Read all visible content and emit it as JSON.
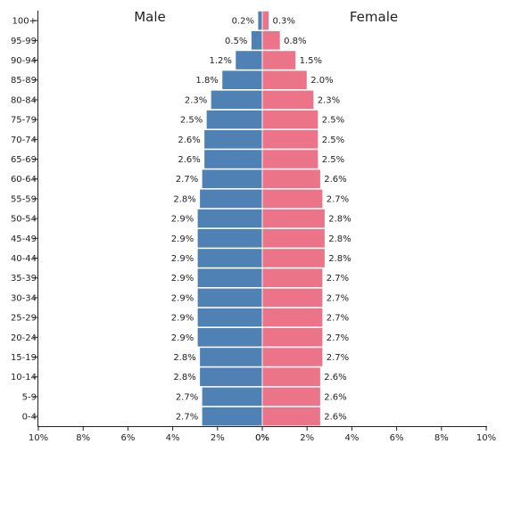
{
  "chart_data": {
    "type": "bar",
    "orientation": "horizontal",
    "layout": "population-pyramid",
    "left_label": "Male",
    "right_label": "Female",
    "categories": [
      "100+",
      "95-99",
      "90-94",
      "85-89",
      "80-84",
      "75-79",
      "70-74",
      "65-69",
      "60-64",
      "55-59",
      "50-54",
      "45-49",
      "40-44",
      "35-39",
      "30-34",
      "25-29",
      "20-24",
      "15-19",
      "10-14",
      "5-9",
      "0-4"
    ],
    "series": [
      {
        "name": "Male",
        "color": "#4f81b4",
        "values": [
          0.2,
          0.5,
          1.2,
          1.8,
          2.3,
          2.5,
          2.6,
          2.6,
          2.7,
          2.8,
          2.9,
          2.9,
          2.9,
          2.9,
          2.9,
          2.9,
          2.9,
          2.8,
          2.8,
          2.7,
          2.7
        ],
        "value_labels": [
          "0.2%",
          "0.5%",
          "1.2%",
          "1.8%",
          "2.3%",
          "2.5%",
          "2.6%",
          "2.6%",
          "2.7%",
          "2.8%",
          "2.9%",
          "2.9%",
          "2.9%",
          "2.9%",
          "2.9%",
          "2.9%",
          "2.9%",
          "2.8%",
          "2.8%",
          "2.7%",
          "2.7%"
        ]
      },
      {
        "name": "Female",
        "color": "#ec7489",
        "values": [
          0.3,
          0.8,
          1.5,
          2.0,
          2.3,
          2.5,
          2.5,
          2.5,
          2.6,
          2.7,
          2.8,
          2.8,
          2.8,
          2.7,
          2.7,
          2.7,
          2.7,
          2.7,
          2.6,
          2.6,
          2.6
        ],
        "value_labels": [
          "0.3%",
          "0.8%",
          "1.5%",
          "2.0%",
          "2.3%",
          "2.5%",
          "2.5%",
          "2.5%",
          "2.6%",
          "2.7%",
          "2.8%",
          "2.8%",
          "2.8%",
          "2.7%",
          "2.7%",
          "2.7%",
          "2.7%",
          "2.7%",
          "2.6%",
          "2.6%",
          "2.6%"
        ]
      }
    ],
    "xlim": [
      -10,
      10
    ],
    "x_ticks_left": [
      "10%",
      "8%",
      "6%",
      "4%",
      "2%",
      "0%"
    ],
    "x_ticks_right": [
      "0%",
      "2%",
      "4%",
      "6%",
      "8%",
      "10%"
    ],
    "grid": false
  }
}
